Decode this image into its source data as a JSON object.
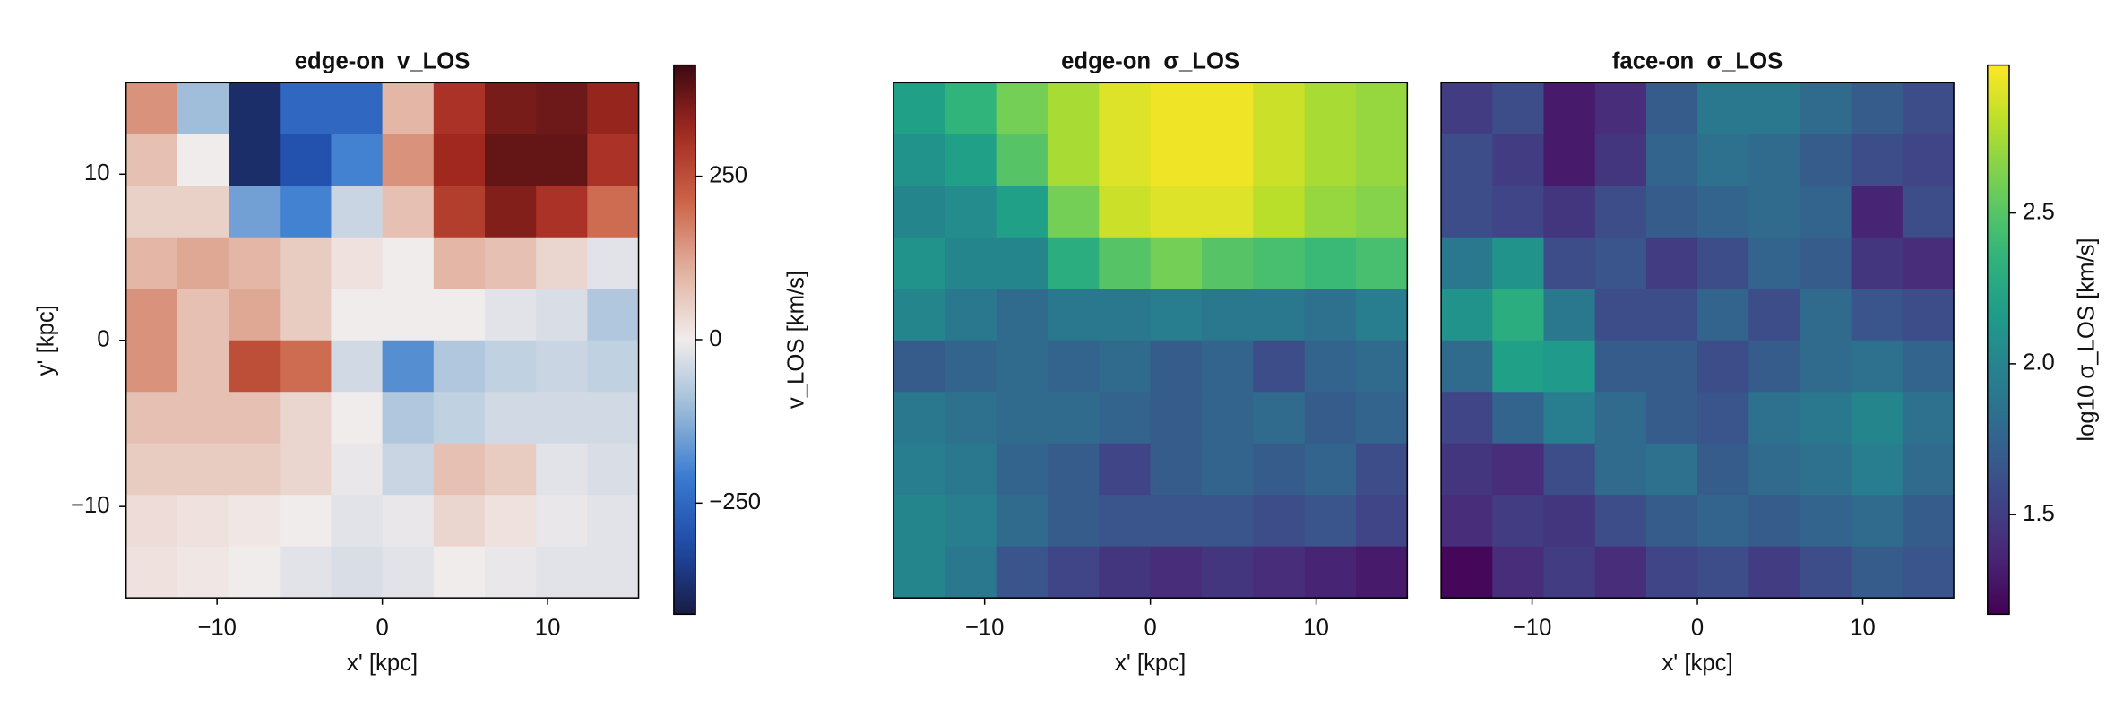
{
  "chart_data": [
    {
      "type": "heatmap",
      "title": "edge-on  v_LOS",
      "xlabel": "x' [kpc]",
      "ylabel": "y' [kpc]",
      "x": [
        -13.95,
        -10.85,
        -7.75,
        -4.65,
        -1.55,
        1.55,
        4.65,
        7.75,
        10.85,
        13.95
      ],
      "y": [
        13.95,
        10.85,
        7.75,
        4.65,
        1.55,
        -1.55,
        -4.65,
        -7.75,
        -10.85,
        -13.95
      ],
      "z": [
        [
          150,
          -100,
          -380,
          -250,
          -250,
          100,
          300,
          360,
          370,
          330
        ],
        [
          80,
          0,
          -380,
          -300,
          -200,
          150,
          320,
          380,
          380,
          300
        ],
        [
          50,
          50,
          -150,
          -200,
          -50,
          80,
          280,
          350,
          300,
          200
        ],
        [
          100,
          120,
          100,
          60,
          20,
          0,
          100,
          80,
          40,
          -20
        ],
        [
          150,
          80,
          120,
          60,
          0,
          0,
          0,
          -20,
          -30,
          -80
        ],
        [
          150,
          80,
          250,
          200,
          -40,
          -180,
          -80,
          -60,
          -50,
          -60
        ],
        [
          80,
          80,
          80,
          40,
          0,
          -80,
          -60,
          -40,
          -40,
          -40
        ],
        [
          60,
          60,
          60,
          40,
          -10,
          -50,
          80,
          60,
          -20,
          -30
        ],
        [
          30,
          20,
          10,
          0,
          -20,
          -10,
          40,
          20,
          -10,
          -20
        ],
        [
          20,
          10,
          0,
          -20,
          -30,
          -20,
          0,
          -10,
          -20,
          -20
        ]
      ],
      "xlim": [
        -15.5,
        15.5
      ],
      "ylim": [
        -15.5,
        15.5
      ],
      "xticks": [
        {
          "value": -10,
          "label": "−10"
        },
        0,
        10
      ],
      "yticks": [
        {
          "value": -10,
          "label": "−10"
        },
        0,
        10
      ],
      "colormap": "balance",
      "clim": [
        -420,
        420
      ],
      "colorbar": {
        "label": "v_LOS [km/s]",
        "ticks": [
          {
            "value": -250,
            "label": "−250"
          },
          0,
          250
        ]
      }
    },
    {
      "type": "heatmap",
      "title": "edge-on  σ_LOS",
      "xlabel": "x' [kpc]",
      "x": [
        -13.95,
        -10.85,
        -7.75,
        -4.65,
        -1.55,
        1.55,
        4.65,
        7.75,
        10.85,
        13.95
      ],
      "y": [
        13.95,
        10.85,
        7.75,
        4.65,
        1.55,
        -1.55,
        -4.65,
        -7.75,
        -10.85,
        -13.95
      ],
      "z": [
        [
          2.2,
          2.35,
          2.6,
          2.75,
          2.9,
          2.95,
          2.95,
          2.85,
          2.75,
          2.7
        ],
        [
          2.1,
          2.2,
          2.5,
          2.75,
          2.9,
          2.95,
          2.95,
          2.85,
          2.75,
          2.7
        ],
        [
          2.0,
          2.05,
          2.2,
          2.6,
          2.85,
          2.9,
          2.9,
          2.8,
          2.7,
          2.65
        ],
        [
          2.1,
          2.0,
          2.0,
          2.3,
          2.5,
          2.6,
          2.5,
          2.45,
          2.4,
          2.45
        ],
        [
          2.0,
          1.9,
          1.8,
          1.9,
          1.9,
          1.95,
          1.9,
          1.9,
          1.85,
          1.95
        ],
        [
          1.7,
          1.75,
          1.8,
          1.75,
          1.8,
          1.7,
          1.75,
          1.6,
          1.75,
          1.8
        ],
        [
          1.9,
          1.85,
          1.8,
          1.8,
          1.75,
          1.7,
          1.75,
          1.8,
          1.7,
          1.75
        ],
        [
          1.95,
          1.9,
          1.75,
          1.7,
          1.55,
          1.7,
          1.75,
          1.7,
          1.75,
          1.6
        ],
        [
          2.0,
          1.95,
          1.8,
          1.7,
          1.65,
          1.65,
          1.65,
          1.6,
          1.65,
          1.55
        ],
        [
          2.0,
          1.9,
          1.65,
          1.55,
          1.45,
          1.4,
          1.45,
          1.4,
          1.35,
          1.3
        ]
      ],
      "xlim": [
        -15.5,
        15.5
      ],
      "ylim": [
        -15.5,
        15.5
      ],
      "xticks": [
        {
          "value": -10,
          "label": "−10"
        },
        0,
        10
      ],
      "colormap": "viridis",
      "clim": [
        1.17,
        2.99
      ]
    },
    {
      "type": "heatmap",
      "title": "face-on  σ_LOS",
      "xlabel": "x' [kpc]",
      "x": [
        -13.95,
        -10.85,
        -7.75,
        -4.65,
        -1.55,
        1.55,
        4.65,
        7.75,
        10.85,
        13.95
      ],
      "y": [
        13.95,
        10.85,
        7.75,
        4.65,
        1.55,
        -1.55,
        -4.65,
        -7.75,
        -10.85,
        -13.95
      ],
      "z": [
        [
          1.5,
          1.6,
          1.3,
          1.4,
          1.7,
          1.9,
          1.9,
          1.8,
          1.7,
          1.6
        ],
        [
          1.6,
          1.5,
          1.3,
          1.45,
          1.75,
          1.85,
          1.8,
          1.7,
          1.6,
          1.55
        ],
        [
          1.6,
          1.55,
          1.45,
          1.6,
          1.7,
          1.75,
          1.8,
          1.75,
          1.35,
          1.6
        ],
        [
          1.9,
          2.1,
          1.6,
          1.65,
          1.5,
          1.6,
          1.75,
          1.7,
          1.45,
          1.4
        ],
        [
          2.1,
          2.3,
          1.9,
          1.6,
          1.6,
          1.75,
          1.6,
          1.8,
          1.65,
          1.6
        ],
        [
          1.8,
          2.2,
          2.15,
          1.7,
          1.7,
          1.6,
          1.7,
          1.8,
          1.85,
          1.75
        ],
        [
          1.55,
          1.75,
          1.95,
          1.8,
          1.7,
          1.65,
          1.85,
          1.9,
          2.0,
          1.85
        ],
        [
          1.45,
          1.4,
          1.6,
          1.8,
          1.85,
          1.7,
          1.8,
          1.85,
          1.95,
          1.8
        ],
        [
          1.4,
          1.5,
          1.45,
          1.6,
          1.7,
          1.75,
          1.7,
          1.75,
          1.8,
          1.7
        ],
        [
          1.2,
          1.4,
          1.5,
          1.4,
          1.55,
          1.6,
          1.5,
          1.6,
          1.7,
          1.65
        ]
      ],
      "xlim": [
        -15.5,
        15.5
      ],
      "ylim": [
        -15.5,
        15.5
      ],
      "xticks": [
        {
          "value": -10,
          "label": "−10"
        },
        0,
        10
      ],
      "colormap": "viridis",
      "clim": [
        1.17,
        2.99
      ],
      "colorbar": {
        "label": "log10 σ_LOS [km/s]",
        "ticks": [
          1.5,
          {
            "value": 2,
            "label": "2.0"
          },
          2.5
        ]
      }
    }
  ]
}
